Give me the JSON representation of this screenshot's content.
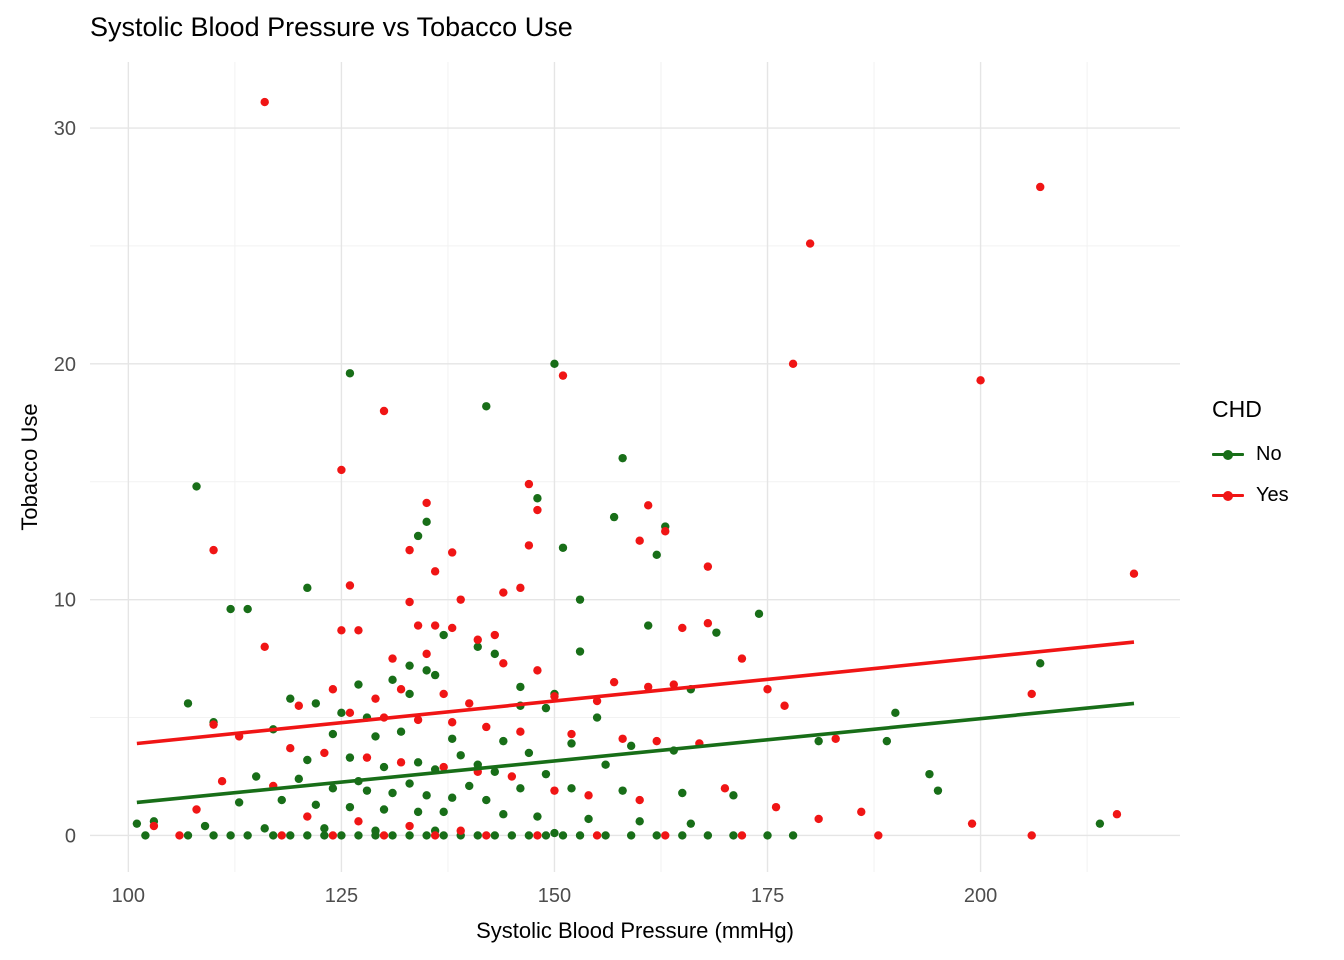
{
  "chart_data": {
    "type": "scatter",
    "title": "Systolic Blood Pressure vs Tobacco Use",
    "xlabel": "Systolic Blood Pressure (mmHg)",
    "ylabel": "Tobacco Use",
    "xlim": [
      95.5,
      223.4
    ],
    "ylim": [
      -1.55,
      32.8
    ],
    "x_ticks": [
      100,
      125,
      150,
      175,
      200
    ],
    "y_ticks": [
      0,
      10,
      20,
      30
    ],
    "x_minor_ticks": [
      112.5,
      137.5,
      162.5,
      187.5,
      212.5
    ],
    "y_minor_ticks": [
      5,
      15,
      25
    ],
    "grid": true,
    "colors": {
      "grid_major": "#e5e5e5",
      "grid_minor": "#f2f2f2",
      "tick_label": "#4d4d4d",
      "background": "#ffffff"
    },
    "legend": {
      "title": "CHD",
      "position": "right",
      "entries": [
        {
          "label": "No",
          "color": "#186e18"
        },
        {
          "label": "Yes",
          "color": "#f01515"
        }
      ]
    },
    "series": [
      {
        "name": "No",
        "color": "#186e18",
        "point_radius": 4.2,
        "trend": {
          "x1": 101,
          "y1": 1.4,
          "x2": 218,
          "y2": 5.6
        },
        "points": [
          [
            150,
            20
          ],
          [
            126,
            19.6
          ],
          [
            142,
            18.2
          ],
          [
            158,
            16
          ],
          [
            108,
            14.8
          ],
          [
            148,
            14.3
          ],
          [
            157,
            13.5
          ],
          [
            135,
            13.3
          ],
          [
            134,
            12.7
          ],
          [
            163,
            13.1
          ],
          [
            151,
            12.2
          ],
          [
            162,
            11.9
          ],
          [
            121,
            10.5
          ],
          [
            112,
            9.6
          ],
          [
            114,
            9.6
          ],
          [
            153,
            10
          ],
          [
            161,
            8.9
          ],
          [
            169,
            8.6
          ],
          [
            174,
            9.4
          ],
          [
            137,
            8.5
          ],
          [
            141,
            8
          ],
          [
            143,
            7.7
          ],
          [
            153,
            7.8
          ],
          [
            207,
            7.3
          ],
          [
            133,
            7.2
          ],
          [
            135,
            7
          ],
          [
            136,
            6.8
          ],
          [
            131,
            6.6
          ],
          [
            127,
            6.4
          ],
          [
            146,
            6.3
          ],
          [
            166,
            6.2
          ],
          [
            150,
            6
          ],
          [
            119,
            5.8
          ],
          [
            122,
            5.6
          ],
          [
            107,
            5.6
          ],
          [
            133,
            6
          ],
          [
            190,
            5.2
          ],
          [
            146,
            5.5
          ],
          [
            149,
            5.4
          ],
          [
            155,
            5
          ],
          [
            128,
            5
          ],
          [
            125,
            5.2
          ],
          [
            110,
            4.8
          ],
          [
            117,
            4.5
          ],
          [
            124,
            4.3
          ],
          [
            129,
            4.2
          ],
          [
            132,
            4.4
          ],
          [
            138,
            4.1
          ],
          [
            144,
            4
          ],
          [
            152,
            3.9
          ],
          [
            159,
            3.8
          ],
          [
            164,
            3.6
          ],
          [
            147,
            3.5
          ],
          [
            139,
            3.4
          ],
          [
            126,
            3.3
          ],
          [
            121,
            3.2
          ],
          [
            134,
            3.1
          ],
          [
            141,
            3
          ],
          [
            156,
            3
          ],
          [
            181,
            4
          ],
          [
            189,
            4
          ],
          [
            194,
            2.6
          ],
          [
            130,
            2.9
          ],
          [
            136,
            2.8
          ],
          [
            143,
            2.7
          ],
          [
            149,
            2.6
          ],
          [
            115,
            2.5
          ],
          [
            120,
            2.4
          ],
          [
            127,
            2.3
          ],
          [
            133,
            2.2
          ],
          [
            140,
            2.1
          ],
          [
            146,
            2
          ],
          [
            152,
            2
          ],
          [
            158,
            1.9
          ],
          [
            165,
            1.8
          ],
          [
            171,
            1.7
          ],
          [
            124,
            2
          ],
          [
            128,
            1.9
          ],
          [
            131,
            1.8
          ],
          [
            135,
            1.7
          ],
          [
            138,
            1.6
          ],
          [
            142,
            1.5
          ],
          [
            118,
            1.5
          ],
          [
            113,
            1.4
          ],
          [
            122,
            1.3
          ],
          [
            126,
            1.2
          ],
          [
            130,
            1.1
          ],
          [
            134,
            1
          ],
          [
            137,
            1
          ],
          [
            144,
            0.9
          ],
          [
            148,
            0.8
          ],
          [
            154,
            0.7
          ],
          [
            160,
            0.6
          ],
          [
            166,
            0.5
          ],
          [
            103,
            0.6
          ],
          [
            101,
            0.5
          ],
          [
            214,
            0.5
          ],
          [
            109,
            0.4
          ],
          [
            116,
            0.3
          ],
          [
            123,
            0.3
          ],
          [
            129,
            0.2
          ],
          [
            136,
            0.2
          ],
          [
            150,
            0.1
          ],
          [
            195,
            1.9
          ],
          [
            102,
            0
          ],
          [
            107,
            0
          ],
          [
            110,
            0
          ],
          [
            112,
            0
          ],
          [
            114,
            0
          ],
          [
            117,
            0
          ],
          [
            119,
            0
          ],
          [
            121,
            0
          ],
          [
            123,
            0
          ],
          [
            125,
            0
          ],
          [
            127,
            0
          ],
          [
            129,
            0
          ],
          [
            131,
            0
          ],
          [
            133,
            0
          ],
          [
            135,
            0
          ],
          [
            137,
            0
          ],
          [
            139,
            0
          ],
          [
            141,
            0
          ],
          [
            143,
            0
          ],
          [
            145,
            0
          ],
          [
            147,
            0
          ],
          [
            149,
            0
          ],
          [
            151,
            0
          ],
          [
            153,
            0
          ],
          [
            156,
            0
          ],
          [
            159,
            0
          ],
          [
            162,
            0
          ],
          [
            165,
            0
          ],
          [
            168,
            0
          ],
          [
            171,
            0
          ],
          [
            175,
            0
          ],
          [
            178,
            0
          ]
        ]
      },
      {
        "name": "Yes",
        "color": "#f01515",
        "point_radius": 4.2,
        "trend": {
          "x1": 101,
          "y1": 3.9,
          "x2": 218,
          "y2": 8.2
        },
        "points": [
          [
            116,
            31.1
          ],
          [
            207,
            27.5
          ],
          [
            180,
            25.1
          ],
          [
            178,
            20
          ],
          [
            151,
            19.5
          ],
          [
            200,
            19.3
          ],
          [
            130,
            18
          ],
          [
            125,
            15.5
          ],
          [
            147,
            14.9
          ],
          [
            135,
            14.1
          ],
          [
            161,
            14
          ],
          [
            148,
            13.8
          ],
          [
            160,
            12.5
          ],
          [
            133,
            12.1
          ],
          [
            110,
            12.1
          ],
          [
            138,
            12
          ],
          [
            147,
            12.3
          ],
          [
            163,
            12.9
          ],
          [
            168,
            11.4
          ],
          [
            218,
            11.1
          ],
          [
            136,
            11.2
          ],
          [
            126,
            10.6
          ],
          [
            139,
            10
          ],
          [
            133,
            9.9
          ],
          [
            144,
            10.3
          ],
          [
            146,
            10.5
          ],
          [
            125,
            8.7
          ],
          [
            127,
            8.7
          ],
          [
            134,
            8.9
          ],
          [
            136,
            8.9
          ],
          [
            138,
            8.8
          ],
          [
            116,
            8
          ],
          [
            143,
            8.5
          ],
          [
            141,
            8.3
          ],
          [
            165,
            8.8
          ],
          [
            168,
            9
          ],
          [
            131,
            7.5
          ],
          [
            135,
            7.7
          ],
          [
            144,
            7.3
          ],
          [
            148,
            7
          ],
          [
            172,
            7.5
          ],
          [
            157,
            6.5
          ],
          [
            161,
            6.3
          ],
          [
            164,
            6.4
          ],
          [
            175,
            6.2
          ],
          [
            206,
            6
          ],
          [
            132,
            6.2
          ],
          [
            137,
            6
          ],
          [
            120,
            5.5
          ],
          [
            124,
            6.2
          ],
          [
            129,
            5.8
          ],
          [
            140,
            5.6
          ],
          [
            150,
            5.9
          ],
          [
            155,
            5.7
          ],
          [
            177,
            5.5
          ],
          [
            126,
            5.2
          ],
          [
            130,
            5
          ],
          [
            134,
            4.9
          ],
          [
            138,
            4.8
          ],
          [
            142,
            4.6
          ],
          [
            146,
            4.4
          ],
          [
            152,
            4.3
          ],
          [
            158,
            4.1
          ],
          [
            162,
            4
          ],
          [
            167,
            3.9
          ],
          [
            183,
            4.1
          ],
          [
            110,
            4.7
          ],
          [
            113,
            4.2
          ],
          [
            119,
            3.7
          ],
          [
            123,
            3.5
          ],
          [
            128,
            3.3
          ],
          [
            132,
            3.1
          ],
          [
            137,
            2.9
          ],
          [
            141,
            2.7
          ],
          [
            145,
            2.5
          ],
          [
            111,
            2.3
          ],
          [
            117,
            2.1
          ],
          [
            150,
            1.9
          ],
          [
            154,
            1.7
          ],
          [
            160,
            1.5
          ],
          [
            170,
            2
          ],
          [
            176,
            1.2
          ],
          [
            186,
            1
          ],
          [
            181,
            0.7
          ],
          [
            216,
            0.9
          ],
          [
            199,
            0.5
          ],
          [
            103,
            0.4
          ],
          [
            108,
            1.1
          ],
          [
            121,
            0.8
          ],
          [
            127,
            0.6
          ],
          [
            133,
            0.4
          ],
          [
            139,
            0.2
          ],
          [
            106,
            0
          ],
          [
            118,
            0
          ],
          [
            124,
            0
          ],
          [
            130,
            0
          ],
          [
            136,
            0
          ],
          [
            142,
            0
          ],
          [
            148,
            0
          ],
          [
            155,
            0
          ],
          [
            163,
            0
          ],
          [
            172,
            0
          ],
          [
            188,
            0
          ],
          [
            206,
            0
          ]
        ]
      }
    ]
  }
}
